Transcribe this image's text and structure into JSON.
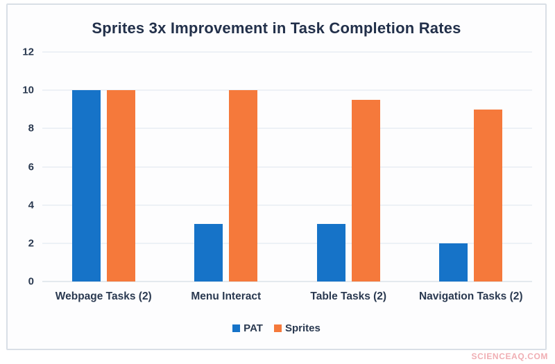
{
  "page": {
    "watermark": "SCIENCEAQ.COM"
  },
  "chart_data": {
    "type": "bar",
    "title": "Sprites 3x Improvement in Task Completion Rates",
    "categories": [
      "Webpage Tasks (2)",
      "Menu Interact",
      "Table Tasks (2)",
      "Navigation Tasks (2)"
    ],
    "series": [
      {
        "name": "PAT",
        "color": "#1673c8",
        "values": [
          10,
          3,
          3,
          2
        ]
      },
      {
        "name": "Sprites",
        "color": "#f5793b",
        "values": [
          10,
          10,
          9.5,
          9
        ]
      }
    ],
    "xlabel": "",
    "ylabel": "",
    "ylim": [
      0,
      12
    ],
    "ytick_step": 2,
    "grid": true,
    "legend_position": "bottom",
    "colors": {
      "title_text": "#22304a",
      "axis_text": "#2a3950",
      "gridline": "#dde5ee",
      "card_border": "#d9dfe6",
      "watermark": "#f0aeb3"
    }
  }
}
